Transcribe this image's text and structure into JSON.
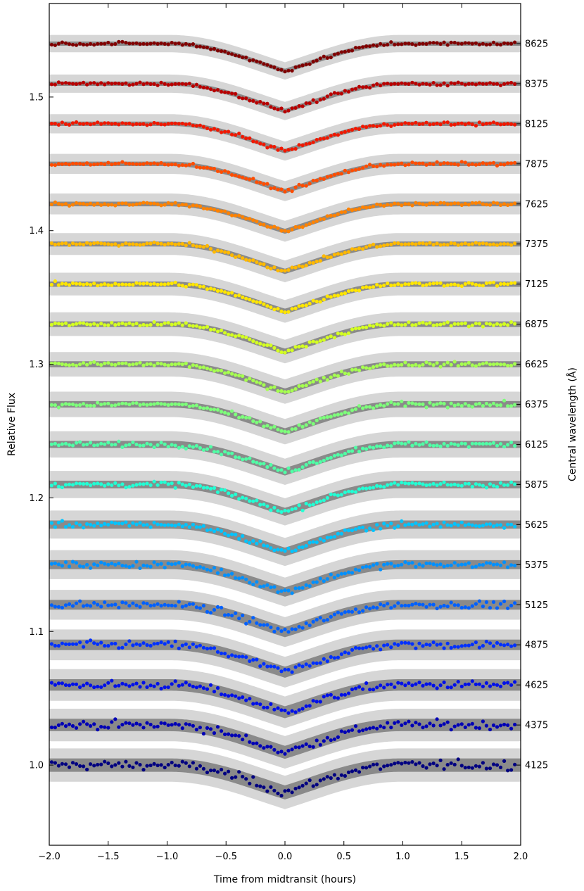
{
  "chart_data": {
    "type": "scatter",
    "title": "",
    "xlabel": "Time from midtransit (hours)",
    "ylabel": "Relative Flux",
    "y2label": "Central wavelength (Å)",
    "xlim": [
      -2.0,
      2.0
    ],
    "ylim": [
      0.94,
      1.57
    ],
    "x_ticks": [
      "−2.0",
      "−1.5",
      "−1.0",
      "−0.5",
      "0.0",
      "0.5",
      "1.0",
      "1.5",
      "2.0"
    ],
    "y_ticks": [
      "1.0",
      "1.1",
      "1.2",
      "1.3",
      "1.4",
      "1.5"
    ],
    "transit": {
      "ingress_start": -0.98,
      "full_start": -0.58,
      "full_end": 0.58,
      "egress_end": 0.98,
      "depth": 0.035
    },
    "series": [
      {
        "name": "4125",
        "baseline": 1.0,
        "color": "#000080"
      },
      {
        "name": "4375",
        "baseline": 1.03,
        "color": "#0000b5"
      },
      {
        "name": "4625",
        "baseline": 1.06,
        "color": "#0010e8"
      },
      {
        "name": "4875",
        "baseline": 1.09,
        "color": "#0030ff"
      },
      {
        "name": "5125",
        "baseline": 1.12,
        "color": "#0060ff"
      },
      {
        "name": "5375",
        "baseline": 1.15,
        "color": "#0090ff"
      },
      {
        "name": "5625",
        "baseline": 1.18,
        "color": "#00c4ff"
      },
      {
        "name": "5875",
        "baseline": 1.21,
        "color": "#22ffd4"
      },
      {
        "name": "6125",
        "baseline": 1.24,
        "color": "#50ffa6"
      },
      {
        "name": "6375",
        "baseline": 1.27,
        "color": "#7dff7a"
      },
      {
        "name": "6625",
        "baseline": 1.3,
        "color": "#a6ff50"
      },
      {
        "name": "6875",
        "baseline": 1.33,
        "color": "#d4ff22"
      },
      {
        "name": "7125",
        "baseline": 1.36,
        "color": "#ffe600"
      },
      {
        "name": "7375",
        "baseline": 1.39,
        "color": "#ffb900"
      },
      {
        "name": "7625",
        "baseline": 1.42,
        "color": "#ff8200"
      },
      {
        "name": "7875",
        "baseline": 1.45,
        "color": "#ff4d00"
      },
      {
        "name": "8125",
        "baseline": 1.48,
        "color": "#f01800"
      },
      {
        "name": "8375",
        "baseline": 1.51,
        "color": "#b80000"
      },
      {
        "name": "8625",
        "baseline": 1.54,
        "color": "#800000"
      }
    ]
  }
}
